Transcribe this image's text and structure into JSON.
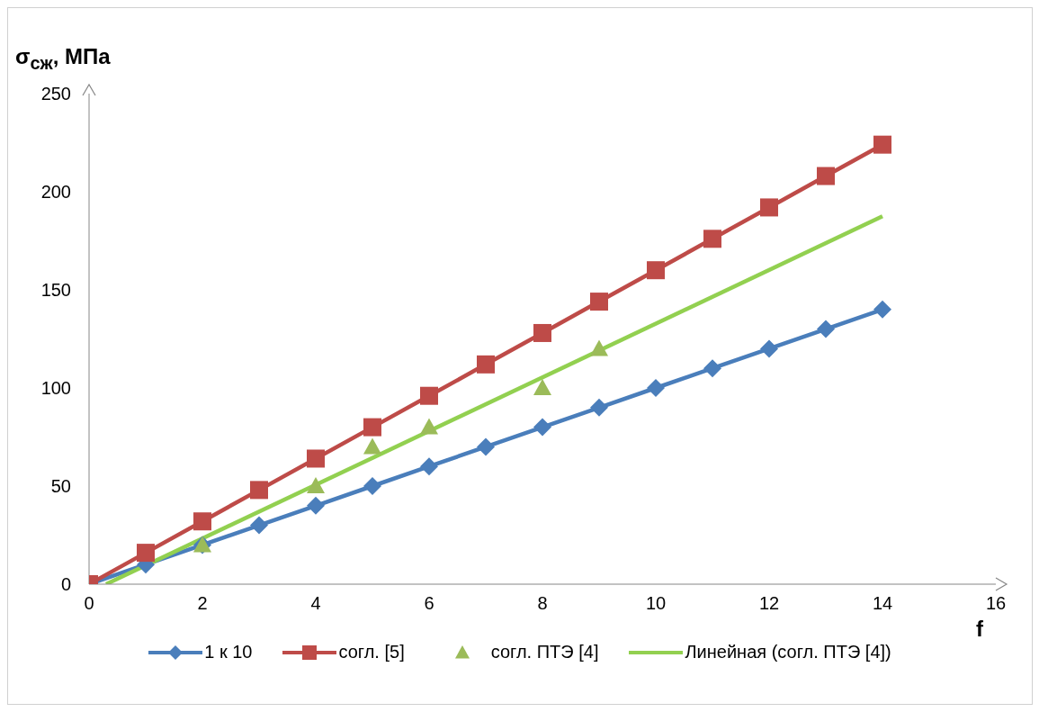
{
  "chart_data": {
    "type": "line",
    "ylabel": "σ$_{сж}$, МПа",
    "xlabel": "f",
    "xlim": [
      0,
      16
    ],
    "xticks": [
      0,
      2,
      4,
      6,
      8,
      10,
      12,
      14,
      16
    ],
    "ylim": [
      0,
      250
    ],
    "yticks": [
      0,
      50,
      100,
      150,
      200,
      250
    ],
    "grid": false,
    "legend": "bottom",
    "series": [
      {
        "name": "1 к 10",
        "marker": "diamond",
        "color": "#4a7ebb",
        "x": [
          0,
          1,
          2,
          3,
          4,
          5,
          6,
          7,
          8,
          9,
          10,
          11,
          12,
          13,
          14
        ],
        "values": [
          0,
          10,
          20,
          30,
          40,
          50,
          60,
          70,
          80,
          90,
          100,
          110,
          120,
          130,
          140
        ]
      },
      {
        "name": "согл. [5]",
        "marker": "square",
        "color": "#be4b48",
        "x": [
          0,
          1,
          2,
          3,
          4,
          5,
          6,
          7,
          8,
          9,
          10,
          11,
          12,
          13,
          14
        ],
        "values": [
          0,
          16,
          32,
          48,
          64,
          80,
          96,
          112,
          128,
          144,
          160,
          176,
          192,
          208,
          224
        ]
      },
      {
        "name": "согл. ПТЭ [4]",
        "type": "scatter",
        "marker": "triangle",
        "color": "#9bbb59",
        "x": [
          2,
          4,
          5,
          6,
          8,
          9
        ],
        "values": [
          20,
          50,
          70,
          80,
          100,
          120
        ]
      },
      {
        "name": "Линейная (согл. ПТЭ [4])",
        "marker": "none",
        "color": "#92d050",
        "x": [
          0.3,
          14
        ],
        "values": [
          0,
          187.5
        ]
      }
    ]
  }
}
